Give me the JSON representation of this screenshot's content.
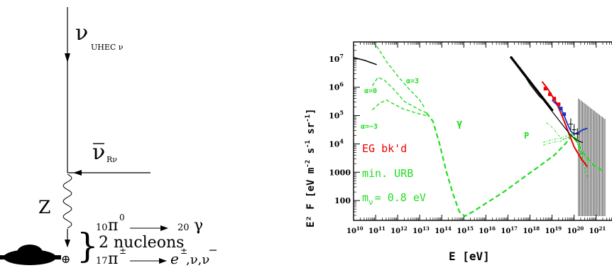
{
  "diagram": {
    "nu_uhec_symbol": "ν",
    "nu_uhec_sub": "UHEC ν",
    "nu_relic_symbol": "ν",
    "nu_relic_sub": "Rν",
    "z_label": "Z",
    "decay_pi0_mult": "10",
    "decay_pi0": "π",
    "decay_pi0_sup": "0",
    "decay_gamma_mult": "20",
    "decay_gamma": "γ",
    "decay_nucleons": "2 nucleons",
    "decay_pipm_mult": "17",
    "decay_pipm": "π",
    "decay_pipm_sup": "±",
    "decay_products_e": "e",
    "decay_products_sup": "±",
    "decay_products_rest": ",ν,ν",
    "vertex_symbol": "⊕",
    "colors": {
      "ink": "#000000"
    },
    "icons": [
      "galaxy-blob-icon",
      "arrow-icon",
      "wavy-propagator-icon",
      "brace-icon"
    ]
  },
  "chart_data": {
    "type": "line",
    "title": "",
    "xlabel": "E  [eV]",
    "ylabel_parts": {
      "base": "E² F  [eV m",
      "sup1": "-2",
      "mid1": " s",
      "sup2": "-1",
      "mid2": " sr",
      "sup3": "-1",
      "end": "]"
    },
    "xscale": "log",
    "yscale": "log",
    "xlim": [
      10000000000.0,
      1e+22
    ],
    "ylim": [
      20,
      20000000.0
    ],
    "x_ticks": [
      {
        "base": "10",
        "exp": "10",
        "v": 10
      },
      {
        "base": "10",
        "exp": "11",
        "v": 11
      },
      {
        "base": "10",
        "exp": "12",
        "v": 12
      },
      {
        "base": "10",
        "exp": "13",
        "v": 13
      },
      {
        "base": "10",
        "exp": "14",
        "v": 14
      },
      {
        "base": "10",
        "exp": "15",
        "v": 15
      },
      {
        "base": "10",
        "exp": "16",
        "v": 16
      },
      {
        "base": "10",
        "exp": "17",
        "v": 17
      },
      {
        "base": "10",
        "exp": "18",
        "v": 18
      },
      {
        "base": "10",
        "exp": "19",
        "v": 19
      },
      {
        "base": "10",
        "exp": "20",
        "v": 20
      },
      {
        "base": "10",
        "exp": "21",
        "v": 21
      }
    ],
    "y_ticks": [
      {
        "base": "10",
        "exp": "7",
        "text": "",
        "v": 7
      },
      {
        "base": "10",
        "exp": "6",
        "text": "",
        "v": 6
      },
      {
        "base": "10",
        "exp": "5",
        "text": "",
        "v": 5
      },
      {
        "base": "10",
        "exp": "4",
        "text": "",
        "v": 4
      },
      {
        "base": "",
        "exp": "",
        "text": "1000",
        "v": 3
      },
      {
        "base": "",
        "exp": "",
        "text": "100",
        "v": 2
      }
    ],
    "annotations": {
      "alpha3": "α=3",
      "alpha0": "α=0",
      "alpham3": "α=−3",
      "gamma": "γ",
      "p": "P",
      "eg_bkd": "EG bk'd",
      "min_urb": "min. URB",
      "mnu_base": "m",
      "mnu_sub": "ν",
      "mnu_rest": "= 0.8 eV"
    },
    "colors": {
      "green": "#22dd22",
      "red": "#ee0000",
      "blue": "#1133cc",
      "black": "#000000"
    },
    "series": {
      "photon_alpha3": [
        [
          11.05,
          7.45
        ],
        [
          11.5,
          6.9
        ],
        [
          12.0,
          6.4
        ],
        [
          12.5,
          5.95
        ],
        [
          13.0,
          5.55
        ],
        [
          13.2,
          5.3
        ]
      ],
      "photon_alpha0": [
        [
          10.85,
          6.05
        ],
        [
          11.1,
          6.35
        ],
        [
          11.4,
          6.25
        ],
        [
          11.8,
          5.95
        ],
        [
          12.3,
          5.5
        ],
        [
          13.0,
          5.2
        ],
        [
          13.3,
          5.1
        ]
      ],
      "photon_alpham3": [
        [
          10.85,
          5.2
        ],
        [
          11.2,
          5.45
        ],
        [
          11.5,
          5.55
        ],
        [
          11.8,
          5.42
        ],
        [
          12.2,
          5.25
        ],
        [
          12.8,
          5.1
        ],
        [
          13.3,
          5.0
        ]
      ],
      "photon_main": [
        [
          13.3,
          5.1
        ],
        [
          13.6,
          4.8
        ],
        [
          13.9,
          4.0
        ],
        [
          14.2,
          3.05
        ],
        [
          14.5,
          2.25
        ],
        [
          14.8,
          1.6
        ],
        [
          15.05,
          1.45
        ],
        [
          15.4,
          1.6
        ],
        [
          16.0,
          1.9
        ],
        [
          16.8,
          2.3
        ],
        [
          17.6,
          2.75
        ],
        [
          18.4,
          3.2
        ],
        [
          19.1,
          3.6
        ],
        [
          19.6,
          4.0
        ],
        [
          19.9,
          4.3
        ],
        [
          20.1,
          4.1
        ],
        [
          20.4,
          3.7
        ],
        [
          20.8,
          3.3
        ],
        [
          21.3,
          3.05
        ]
      ],
      "proton_a": [
        [
          18.75,
          4.75
        ],
        [
          19.05,
          4.55
        ],
        [
          19.3,
          4.3
        ],
        [
          19.55,
          4.15
        ],
        [
          19.8,
          4.25
        ],
        [
          20.0,
          4.35
        ],
        [
          20.2,
          4.0
        ],
        [
          20.4,
          3.3
        ],
        [
          20.6,
          2.85
        ]
      ],
      "proton_b": [
        [
          18.6,
          4.05
        ],
        [
          19.0,
          4.15
        ],
        [
          19.4,
          4.2
        ],
        [
          19.7,
          4.3
        ],
        [
          19.95,
          4.38
        ],
        [
          20.15,
          4.0
        ],
        [
          20.35,
          3.5
        ],
        [
          20.6,
          3.15
        ]
      ],
      "proton_c": [
        [
          18.6,
          3.95
        ],
        [
          19.0,
          4.05
        ],
        [
          19.4,
          4.1
        ],
        [
          19.75,
          4.25
        ],
        [
          20.0,
          4.3
        ],
        [
          20.2,
          3.95
        ],
        [
          20.45,
          3.45
        ],
        [
          20.65,
          3.15
        ]
      ],
      "eg_background": [
        [
          18.55,
          6.2
        ],
        [
          18.8,
          5.95
        ],
        [
          19.0,
          5.7
        ],
        [
          19.2,
          5.45
        ],
        [
          19.4,
          5.1
        ],
        [
          19.6,
          4.7
        ],
        [
          19.8,
          4.3
        ],
        [
          20.0,
          3.9
        ],
        [
          20.3,
          3.5
        ],
        [
          20.6,
          3.2
        ]
      ],
      "proton_flux_blue": [
        [
          19.0,
          5.55
        ],
        [
          19.2,
          5.4
        ],
        [
          19.4,
          5.25
        ],
        [
          19.55,
          5.0
        ],
        [
          19.7,
          4.7
        ],
        [
          19.85,
          4.45
        ],
        [
          20.0,
          4.35
        ],
        [
          20.2,
          4.4
        ],
        [
          20.4,
          4.5
        ],
        [
          20.6,
          4.55
        ]
      ],
      "cosmic_ray_black": [
        [
          17.2,
          7.0
        ],
        [
          17.4,
          6.8
        ],
        [
          17.6,
          6.55
        ],
        [
          17.8,
          6.35
        ],
        [
          18.0,
          6.1
        ],
        [
          18.2,
          5.9
        ],
        [
          18.4,
          5.7
        ],
        [
          18.6,
          5.55
        ],
        [
          18.8,
          5.35
        ],
        [
          19.0,
          5.15
        ],
        [
          19.2,
          4.95
        ],
        [
          19.4,
          4.75
        ],
        [
          19.6,
          4.55
        ],
        [
          19.8,
          4.35
        ],
        [
          20.0,
          4.2
        ],
        [
          20.2,
          4.1
        ],
        [
          20.4,
          4.05
        ]
      ],
      "egret_black": [
        [
          10.0,
          7.05
        ],
        [
          10.5,
          6.95
        ],
        [
          11.05,
          6.8
        ]
      ],
      "cr_dots_range": [
        17.15,
        19.05,
        0.05
      ],
      "error_bars_region": [
        20.2,
        21.4
      ]
    }
  }
}
